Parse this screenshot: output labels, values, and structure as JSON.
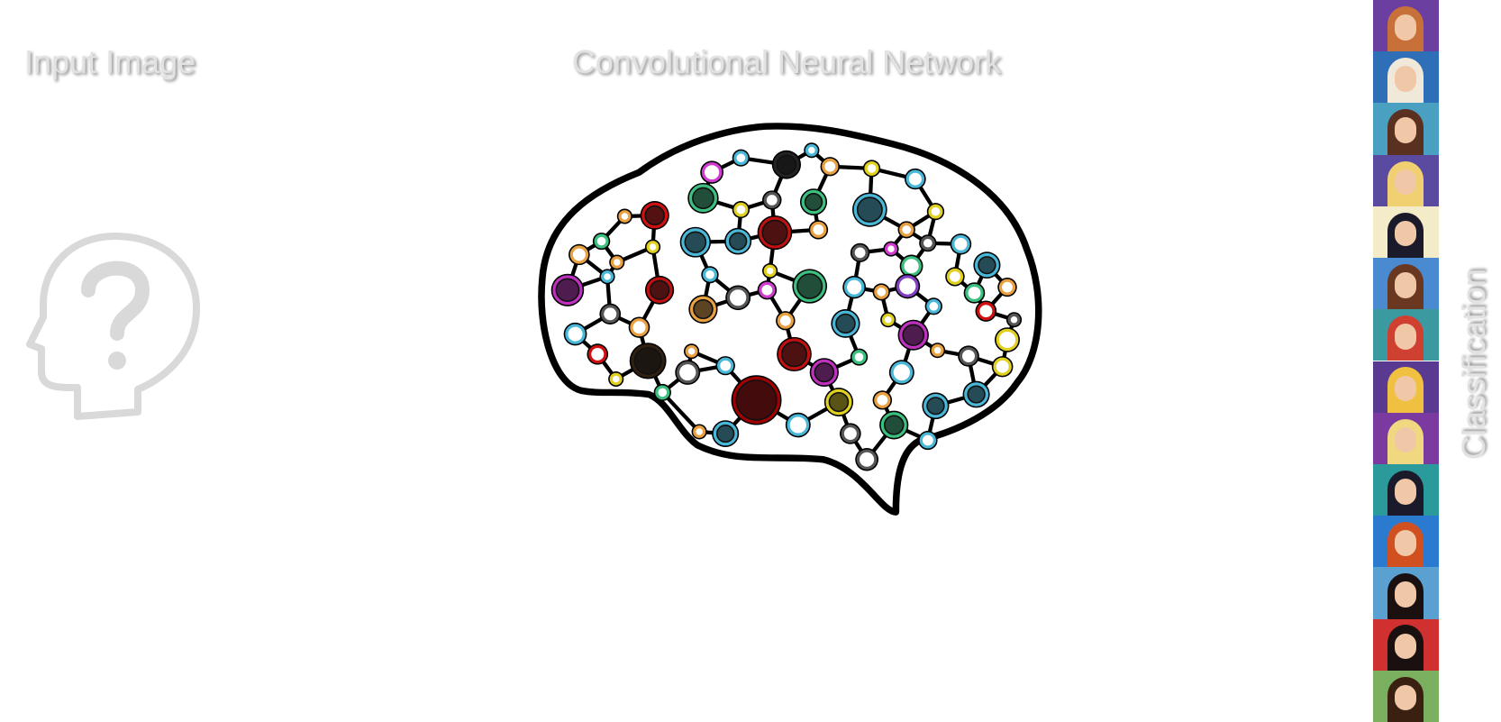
{
  "labels": {
    "input": "Input Image",
    "network": "Convolutional Neural Network",
    "output": "Classification"
  }
}
